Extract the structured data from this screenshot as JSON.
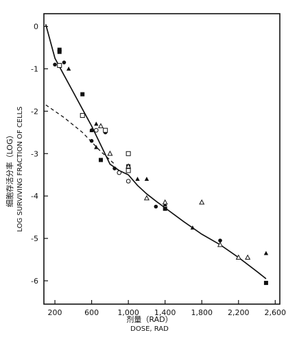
{
  "chart_data": {
    "type": "scatter",
    "title": "",
    "xlabel_cn": "剂量（RAD）",
    "xlabel": "DOSE, RAD",
    "ylabel_cn": "细胞存活分率（LOG）",
    "ylabel": "LOG SURVIVING FRACTION OF CELLS",
    "xlim": [
      80,
      2650
    ],
    "ylim": [
      -6.55,
      0.3
    ],
    "x_ticks": [
      200,
      600,
      1000,
      1400,
      1800,
      2200,
      2600
    ],
    "x_tick_labels": [
      "200",
      "600",
      "1,000",
      "1,400",
      "1,800",
      "2,200",
      "2,600"
    ],
    "y_ticks": [
      0,
      -1,
      -2,
      -3,
      -4,
      -5,
      -6
    ],
    "y_tick_labels": [
      "0",
      "-1",
      "-2",
      "-3",
      "-4",
      "-5",
      "-6"
    ],
    "grid": false,
    "legend": "none",
    "curves": [
      {
        "style": "solid",
        "points": [
          [
            100,
            0.05
          ],
          [
            200,
            -0.75
          ],
          [
            300,
            -1.15
          ],
          [
            400,
            -1.55
          ],
          [
            500,
            -1.95
          ],
          [
            600,
            -2.35
          ],
          [
            700,
            -2.8
          ],
          [
            800,
            -3.25
          ],
          [
            900,
            -3.4
          ],
          [
            1000,
            -3.5
          ],
          [
            1100,
            -3.75
          ],
          [
            1200,
            -3.95
          ],
          [
            1300,
            -4.12
          ],
          [
            1400,
            -4.28
          ],
          [
            1600,
            -4.6
          ],
          [
            1800,
            -4.9
          ],
          [
            2000,
            -5.15
          ],
          [
            2200,
            -5.45
          ],
          [
            2400,
            -5.78
          ],
          [
            2500,
            -5.95
          ]
        ]
      },
      {
        "style": "dashed",
        "points": [
          [
            100,
            -1.85
          ],
          [
            300,
            -2.15
          ],
          [
            500,
            -2.5
          ],
          [
            700,
            -2.95
          ],
          [
            850,
            -3.25
          ]
        ]
      }
    ],
    "series": [
      {
        "marker": "filled-circle",
        "points": [
          [
            200,
            -0.9
          ],
          [
            300,
            -0.85
          ],
          [
            500,
            -1.6
          ],
          [
            600,
            -2.45
          ],
          [
            600,
            -2.7
          ],
          [
            750,
            -2.5
          ],
          [
            850,
            -3.35
          ],
          [
            1000,
            -3.65
          ],
          [
            1300,
            -4.25
          ],
          [
            2000,
            -5.05
          ]
        ]
      },
      {
        "marker": "filled-square",
        "points": [
          [
            250,
            -0.55
          ],
          [
            250,
            -0.6
          ],
          [
            500,
            -1.6
          ],
          [
            700,
            -3.15
          ],
          [
            1000,
            -3.3
          ],
          [
            1400,
            -4.3
          ],
          [
            2500,
            -6.05
          ]
        ]
      },
      {
        "marker": "open-square",
        "points": [
          [
            250,
            -0.92
          ],
          [
            500,
            -2.1
          ],
          [
            750,
            -2.45
          ],
          [
            1000,
            -3.0
          ],
          [
            1000,
            -3.4
          ]
        ]
      },
      {
        "marker": "open-circle",
        "points": [
          [
            650,
            -2.45
          ],
          [
            900,
            -3.45
          ],
          [
            1000,
            -3.65
          ]
        ]
      },
      {
        "marker": "filled-triangle",
        "points": [
          [
            350,
            -1.0
          ],
          [
            600,
            -2.45
          ],
          [
            650,
            -2.3
          ],
          [
            650,
            -2.85
          ],
          [
            1100,
            -3.6
          ],
          [
            1200,
            -3.6
          ],
          [
            1400,
            -4.2
          ],
          [
            1700,
            -4.75
          ],
          [
            2500,
            -5.35
          ]
        ]
      },
      {
        "marker": "open-triangle",
        "points": [
          [
            700,
            -2.35
          ],
          [
            800,
            -3.0
          ],
          [
            1000,
            -3.3
          ],
          [
            1200,
            -4.05
          ],
          [
            1400,
            -4.15
          ],
          [
            1800,
            -4.15
          ],
          [
            2000,
            -5.15
          ],
          [
            2200,
            -5.45
          ],
          [
            2300,
            -5.45
          ]
        ]
      }
    ]
  }
}
